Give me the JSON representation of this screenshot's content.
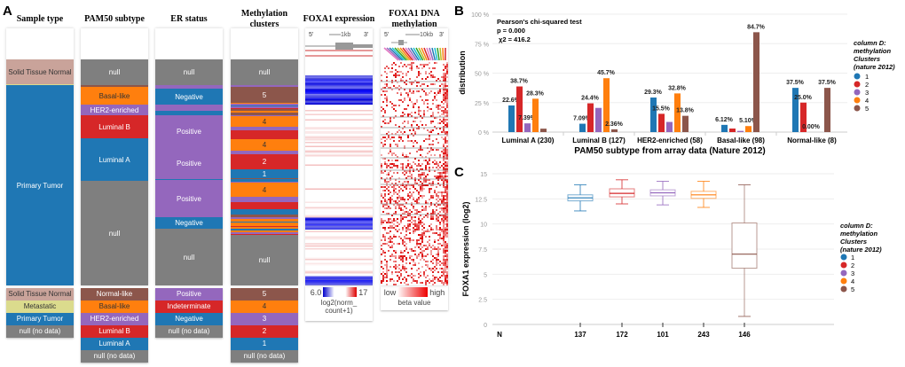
{
  "panel_a": {
    "label": "A",
    "columns": [
      "Sample type",
      "PAM50 subtype",
      "ER status",
      "Methylation clusters",
      "FOXA1 expression",
      "FOXA1 DNA methylation"
    ],
    "sample_type": {
      "segments": [
        "Solid Tissue Normal",
        "Primary Tumor"
      ],
      "legend": [
        {
          "label": "Solid Tissue Normal",
          "color": "#c9a39a"
        },
        {
          "label": "Metastatic",
          "color": "#dbdb8d"
        },
        {
          "label": "Primary Tumor",
          "color": "#1f77b4"
        },
        {
          "label": "null (no data)",
          "color": "#7f7f7f"
        }
      ]
    },
    "pam50": {
      "segments": [
        "null",
        "Basal-like",
        "HER2-enriched",
        "Luminal B",
        "Luminal A",
        "null"
      ],
      "legend": [
        {
          "label": "Normal-like",
          "color": "#8c564b"
        },
        {
          "label": "Basal-like",
          "color": "#ff7f0e"
        },
        {
          "label": "HER2-enriched",
          "color": "#9467bd"
        },
        {
          "label": "Luminal B",
          "color": "#d62728"
        },
        {
          "label": "Luminal A",
          "color": "#1f77b4"
        },
        {
          "label": "null (no data)",
          "color": "#7f7f7f"
        }
      ]
    },
    "er": {
      "segments": [
        "null",
        "Negative",
        "Positive",
        "Positive",
        "Positive",
        "Negative",
        "null"
      ],
      "legend": [
        {
          "label": "Positive",
          "color": "#9467bd"
        },
        {
          "label": "Indeterminate",
          "color": "#d62728"
        },
        {
          "label": "Negative",
          "color": "#1f77b4"
        },
        {
          "label": "null (no data)",
          "color": "#7f7f7f"
        }
      ]
    },
    "methylation": {
      "segments": [
        "null",
        "5",
        "4",
        "4",
        "2",
        "1",
        "4",
        "null"
      ],
      "legend": [
        {
          "label": "5",
          "color": "#8c564b"
        },
        {
          "label": "4",
          "color": "#ff7f0e"
        },
        {
          "label": "3",
          "color": "#9467bd"
        },
        {
          "label": "2",
          "color": "#d62728"
        },
        {
          "label": "1",
          "color": "#1f77b4"
        },
        {
          "label": "null (no data)",
          "color": "#7f7f7f"
        }
      ]
    },
    "expression": {
      "gene_5": "5'",
      "gene_3": "3'",
      "scale": "1kb",
      "legend_min": "6.0",
      "legend_max": "17",
      "legend_caption_1": "log2(norm_",
      "legend_caption_2": "count+1)"
    },
    "dna_methylation": {
      "gene_5": "5'",
      "gene_3": "3'",
      "scale": "10kb",
      "legend_min": "low",
      "legend_max": "high",
      "legend_caption": "beta value"
    }
  },
  "chart_data": [
    {
      "type": "bar",
      "panel": "B",
      "annotation": [
        "Pearson's chi-squared  test",
        "p = 0.000",
        "χ2 = 416.2"
      ],
      "xlabel": "PAM50 subtype from array data (Nature 2012)",
      "ylabel": "distribution",
      "ylim": [
        0,
        100
      ],
      "yticks": [
        "0 %",
        "25 %",
        "50 %",
        "75 %",
        "100 %"
      ],
      "grid": true,
      "legend_placement": "right",
      "legend_title": [
        "column D:",
        "methylation",
        "Clusters",
        "(nature 2012)"
      ],
      "categories": [
        "Luminal A (230)",
        "Luminal B (127)",
        "HER2-enriched  (58)",
        "Basal-like (98)",
        "Normal-like  (8)"
      ],
      "series": [
        {
          "name": "1",
          "color": "#1f77b4",
          "values": [
            22.6,
            7.09,
            29.3,
            6.12,
            37.5
          ],
          "labels": [
            "22.6%",
            "7.09%",
            "29.3%",
            "6.12%",
            "37.5%"
          ]
        },
        {
          "name": "2",
          "color": "#d62728",
          "values": [
            38.7,
            24.4,
            15.5,
            3.0,
            25.0
          ],
          "labels": [
            "38.7%",
            "24.4%",
            "15.5%",
            null,
            "25.0%"
          ]
        },
        {
          "name": "3",
          "color": "#9467bd",
          "values": [
            7.39,
            20.5,
            8.6,
            1.0,
            0.0
          ],
          "labels": [
            "7.39%",
            null,
            null,
            null,
            "0.00%"
          ]
        },
        {
          "name": "4",
          "color": "#ff7f0e",
          "values": [
            28.3,
            45.7,
            32.8,
            5.1,
            0
          ],
          "labels": [
            "28.3%",
            "45.7%",
            "32.8%",
            "5.10%",
            null
          ]
        },
        {
          "name": "5",
          "color": "#8c564b",
          "values": [
            2.9,
            2.36,
            13.8,
            84.7,
            37.5
          ],
          "labels": [
            null,
            "2.36%",
            "13.8%",
            "84.7%",
            "37.5%"
          ]
        }
      ]
    },
    {
      "type": "box",
      "panel": "C",
      "ylabel": "FOXA1 expression (log2)",
      "ylim": [
        0,
        15
      ],
      "yticks": [
        "0",
        "2.5",
        "5",
        "7.5",
        "10",
        "12.5",
        "15"
      ],
      "grid": true,
      "legend_placement": "right",
      "legend_title": [
        "column D:",
        "methylation",
        "Clusters",
        "(nature 2012)"
      ],
      "n_label": "N",
      "series": [
        {
          "name": "1",
          "color": "#1f77b4",
          "n": "137",
          "min": 11.3,
          "q1": 12.3,
          "median": 12.6,
          "q3": 12.9,
          "max": 13.9
        },
        {
          "name": "2",
          "color": "#d62728",
          "n": "172",
          "min": 12.0,
          "q1": 12.7,
          "median": 13.05,
          "q3": 13.5,
          "max": 14.4
        },
        {
          "name": "3",
          "color": "#9467bd",
          "n": "101",
          "min": 11.9,
          "q1": 12.8,
          "median": 13.1,
          "q3": 13.4,
          "max": 14.25
        },
        {
          "name": "4",
          "color": "#ff7f0e",
          "n": "243",
          "min": 11.65,
          "q1": 12.55,
          "median": 12.9,
          "q3": 13.25,
          "max": 14.25
        },
        {
          "name": "5",
          "color": "#8c564b",
          "n": "146",
          "min": 0.8,
          "q1": 5.6,
          "median": 7.0,
          "q3": 10.1,
          "max": 13.9
        }
      ]
    }
  ]
}
